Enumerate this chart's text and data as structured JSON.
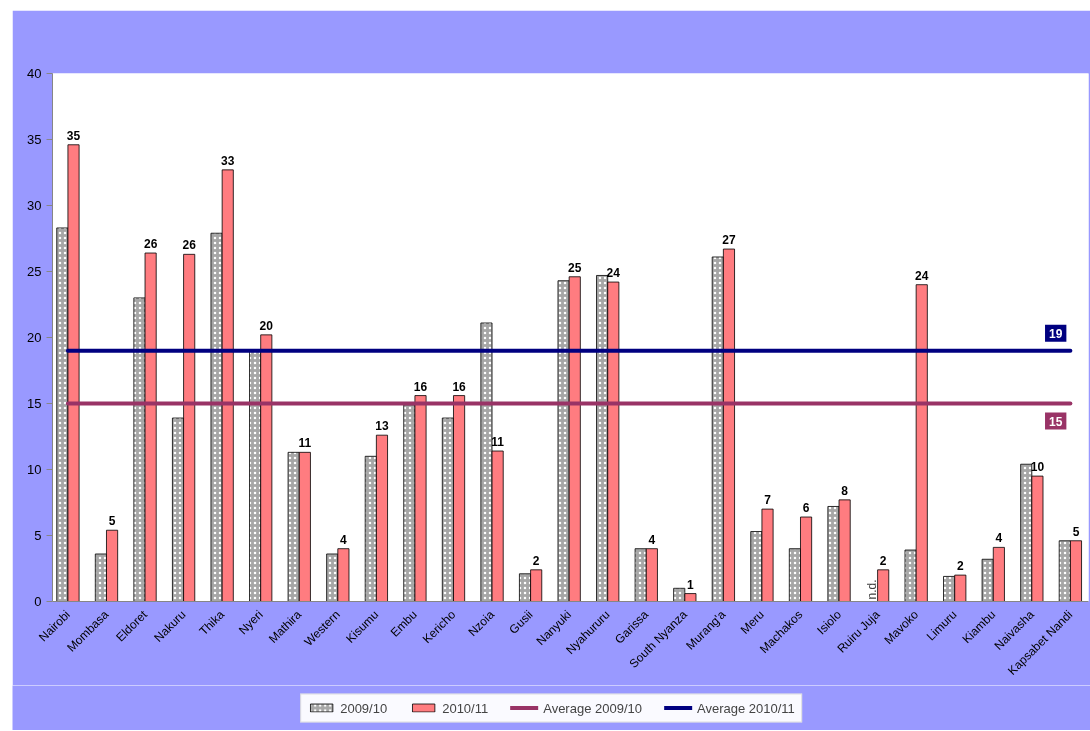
{
  "chart_data": {
    "type": "bar",
    "categories": [
      "Nairobi",
      "Mombasa",
      "Eldoret",
      "Nakuru",
      "Thika",
      "Nyeri",
      "Mathira",
      "Western",
      "Kisumu",
      "Embu",
      "Kericho",
      "Nzoia",
      "Gusii",
      "Nanyuki",
      "Nyahururu",
      "Garissa",
      "South Nyanza",
      "Murang'a",
      "Meru",
      "Machakos",
      "Isiolo",
      "Ruiru Juja",
      "Mavoko",
      "Limuru",
      "Kiambu",
      "Naivasha",
      "Kapsabet Nandi"
    ],
    "ylim": [
      0,
      40
    ],
    "yticks": [
      0,
      5,
      10,
      15,
      20,
      25,
      30,
      35,
      40
    ],
    "grid": false,
    "legend": "bottom",
    "series": [
      {
        "name": "2009/10",
        "color": "#a6a6a6",
        "values": [
          28.3,
          3.6,
          23.0,
          13.9,
          27.9,
          19.0,
          11.3,
          3.6,
          11.0,
          14.9,
          13.9,
          21.1,
          2.1,
          24.3,
          24.7,
          4.0,
          1.0,
          26.1,
          5.3,
          4.0,
          7.2,
          null,
          3.9,
          1.9,
          3.2,
          10.4,
          4.6
        ],
        "value_labels": [
          null,
          null,
          null,
          null,
          null,
          null,
          null,
          null,
          null,
          null,
          null,
          null,
          null,
          null,
          null,
          null,
          null,
          null,
          null,
          null,
          null,
          "n.d.",
          null,
          null,
          null,
          null,
          null
        ]
      },
      {
        "name": "2010/11",
        "color": "#ff7c80",
        "values": [
          34.6,
          5.4,
          26.4,
          26.3,
          32.7,
          20.2,
          11.3,
          4.0,
          12.6,
          15.6,
          15.6,
          11.4,
          2.4,
          24.6,
          24.2,
          4.0,
          0.6,
          26.7,
          7.0,
          6.4,
          7.7,
          2.4,
          24.0,
          2.0,
          4.1,
          9.5,
          4.6
        ],
        "value_labels": [
          "35",
          "5",
          "26",
          "26",
          "33",
          "20",
          "11",
          "4",
          "13",
          "16",
          "16",
          "11",
          "2",
          "25",
          "24",
          "4",
          "1",
          "27",
          "7",
          "6",
          "8",
          "2",
          "24",
          "2",
          "4",
          "10",
          "5"
        ]
      },
      {
        "name": "Average 2009/10",
        "type": "line",
        "color": "#993366",
        "values": [
          15,
          15,
          15,
          15,
          15,
          15,
          15,
          15,
          15,
          15,
          15,
          15,
          15,
          15,
          15,
          15,
          15,
          15,
          15,
          15,
          15,
          15,
          15,
          15,
          15,
          15,
          15
        ],
        "value_labels": [
          null,
          null,
          null,
          null,
          null,
          null,
          null,
          null,
          null,
          null,
          null,
          null,
          null,
          null,
          null,
          null,
          null,
          null,
          null,
          null,
          null,
          null,
          null,
          null,
          null,
          null,
          "15"
        ]
      },
      {
        "name": "Average 2010/11",
        "type": "line",
        "color": "#000080",
        "values": [
          19,
          19,
          19,
          19,
          19,
          19,
          19,
          19,
          19,
          19,
          19,
          19,
          19,
          19,
          19,
          19,
          19,
          19,
          19,
          19,
          19,
          19,
          19,
          19,
          19,
          19,
          19
        ],
        "value_labels": [
          null,
          null,
          null,
          null,
          null,
          null,
          null,
          null,
          null,
          null,
          null,
          null,
          null,
          null,
          null,
          null,
          null,
          null,
          null,
          null,
          null,
          null,
          null,
          null,
          null,
          null,
          "19"
        ]
      }
    ]
  }
}
